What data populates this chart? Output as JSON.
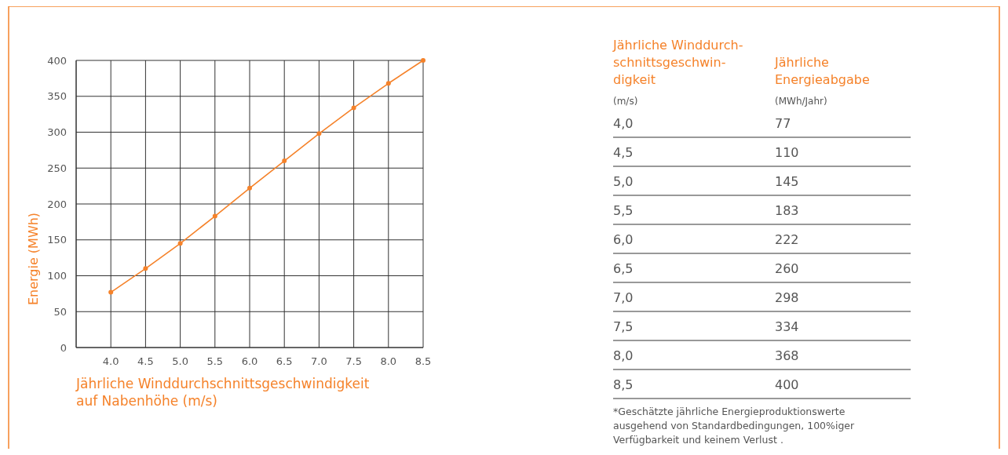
{
  "chart_data": {
    "type": "line",
    "x": [
      4.0,
      4.5,
      5.0,
      5.5,
      6.0,
      6.5,
      7.0,
      7.5,
      8.0,
      8.5
    ],
    "series": [
      {
        "color": "#f5822a",
        "values": [
          77,
          110,
          145,
          183,
          222,
          260,
          298,
          334,
          368,
          400
        ]
      }
    ],
    "xlabel": "Jährliche Winddurchschnittsgeschwindigkeit auf Nabenhöhe (m/s)",
    "ylabel": "Energie (MWh)",
    "xlim": [
      3.5,
      8.5
    ],
    "xticks": [
      {
        "value": 3.5,
        "label": null
      },
      {
        "value": 4,
        "label": "4.0"
      },
      4.5,
      {
        "value": 5,
        "label": "5.0"
      },
      5.5,
      {
        "value": 6,
        "label": "6.0"
      },
      6.5,
      {
        "value": 7,
        "label": "7.0"
      },
      7.5,
      {
        "value": 8,
        "label": "8.0"
      },
      8.5
    ],
    "ylim": [
      0,
      400
    ],
    "yticks": [
      0,
      50,
      100,
      150,
      200,
      250,
      300,
      350,
      400
    ],
    "grid": true,
    "marker": "circle",
    "annotations": [
      "Jährliche Winddurch- schnittsgeschwin- digkeit",
      "(m/s)",
      "Jährliche Energieabgabe",
      "(MWh/Jahr)",
      "*Geschätzte jährliche Energieproduktionswerte ausgehend von Standardbedingungen, 100%iger Verfügbarkeit und keinem Verlust .",
      "4,0",
      "4,5",
      "5,0",
      "5,5",
      "6,0",
      "6,5",
      "7,0",
      "7,5",
      "8,0",
      "8,5",
      "77",
      "110",
      "145",
      "183",
      "222",
      "260",
      "298",
      "334",
      "368",
      "400"
    ]
  }
}
